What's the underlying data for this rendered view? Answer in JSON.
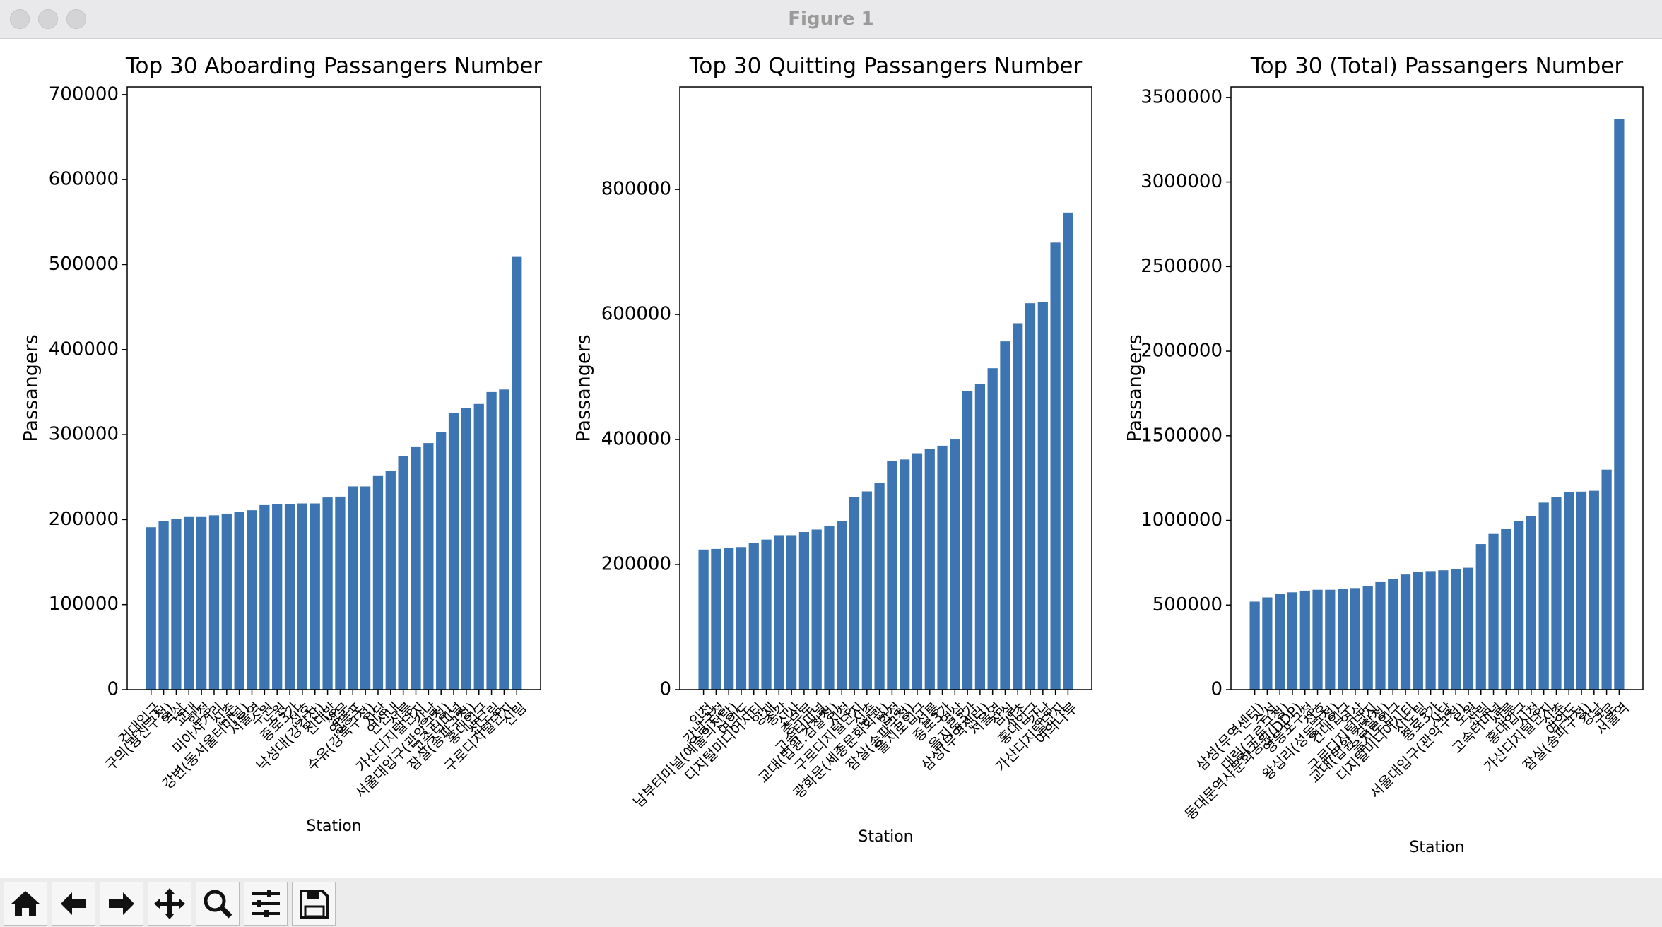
{
  "window": {
    "title": "Figure 1"
  },
  "chart_data": [
    {
      "type": "bar",
      "title": "Top 30 Aboarding Passangers Number",
      "xlabel": "Station",
      "ylabel": "Passangers",
      "color": "#3d75b2",
      "categories": [
        "건대입구",
        "구의(광진구청)",
        "역삼",
        "교대",
        "합정",
        "미아사거리",
        "신촌",
        "강변(동서울터미널)",
        "서울역",
        "수원",
        "노원",
        "종로3가",
        "천호",
        "낙성대(강감찬)",
        "신대방",
        "쌍문",
        "영등포",
        "수유(강북구청)",
        "사당",
        "연신내",
        "선릉",
        "가산디지털단지",
        "강남",
        "서울대입구(관악구청)",
        "고속터미널",
        "잠실(송파구청)",
        "홍대입구",
        "신도림",
        "구로디지털단지",
        "신림"
      ],
      "values": [
        191000,
        198000,
        201000,
        203000,
        203000,
        205000,
        207000,
        209000,
        211000,
        217000,
        218000,
        218000,
        219000,
        219000,
        226000,
        227000,
        239000,
        239000,
        252000,
        257000,
        275000,
        286000,
        290000,
        303000,
        325000,
        331000,
        336000,
        350000,
        353000,
        509000
      ],
      "ylim": [
        0,
        709000
      ],
      "yticks": [
        0,
        100000,
        200000,
        300000,
        400000,
        500000,
        600000,
        700000
      ]
    },
    {
      "type": "bar",
      "title": "Top 30 Quitting Passangers Number",
      "xlabel": "Station",
      "ylabel": "Passangers",
      "color": "#3d75b2",
      "categories": [
        "인천",
        "강남구청",
        "남부터미널(예술의전당)",
        "여의도",
        "디지털미디어시티",
        "양재",
        "종각",
        "신사",
        "충무로",
        "고속터미널",
        "교대(법원.검찰청)",
        "시청",
        "구로디지털단지",
        "신촌",
        "광화문(세종문화회관)",
        "합정",
        "잠실(송파구청)",
        "을지로입구",
        "선릉",
        "종로3가",
        "역삼",
        "을지로3가",
        "삼성(무역센터)",
        "서울역",
        "잠실",
        "서초",
        "홍대입구",
        "강남",
        "가산디지털단지",
        "여의나루"
      ],
      "values": [
        224000,
        225000,
        227000,
        228000,
        234000,
        240000,
        247000,
        247000,
        252000,
        256000,
        262000,
        270000,
        308000,
        317000,
        331000,
        366000,
        368000,
        378000,
        385000,
        390000,
        400000,
        478000,
        489000,
        514000,
        557000,
        586000,
        618000,
        620000,
        715000,
        763000
      ],
      "ylim": [
        0,
        964000
      ],
      "yticks": [
        0,
        200000,
        400000,
        600000,
        800000
      ]
    },
    {
      "type": "bar",
      "title": "Top 30 (Total) Passangers Number",
      "xlabel": "Station",
      "ylabel": "Passangers",
      "color": "#3d75b2",
      "categories": [
        "삼성(무역센터)",
        "수서",
        "대림(구로구청)",
        "동대문역사문화공원(DDP)",
        "영등포구청",
        "천호",
        "왕십리(성동구청)",
        "건대입구",
        "역삼",
        "구로디지털단지",
        "교대(법원.검찰청)",
        "을지로입구",
        "디지털미디어시티",
        "신도림",
        "종로3가",
        "사당",
        "서울대입구(관악구청)",
        "노원",
        "신림",
        "고속터미널",
        "선릉",
        "홍대입구",
        "시청",
        "가산디지털단지",
        "신촌",
        "여의도",
        "잠실(송파구청)",
        "강남",
        "구로",
        "서울역"
      ],
      "values": [
        520000,
        545000,
        565000,
        575000,
        585000,
        590000,
        590000,
        595000,
        600000,
        612000,
        635000,
        655000,
        680000,
        695000,
        700000,
        705000,
        710000,
        720000,
        860000,
        920000,
        950000,
        995000,
        1025000,
        1105000,
        1140000,
        1165000,
        1170000,
        1175000,
        1300000,
        3370000
      ],
      "ylim": [
        0,
        3562000
      ],
      "yticks": [
        0,
        500000,
        1000000,
        1500000,
        2000000,
        2500000,
        3000000,
        3500000
      ]
    }
  ]
}
